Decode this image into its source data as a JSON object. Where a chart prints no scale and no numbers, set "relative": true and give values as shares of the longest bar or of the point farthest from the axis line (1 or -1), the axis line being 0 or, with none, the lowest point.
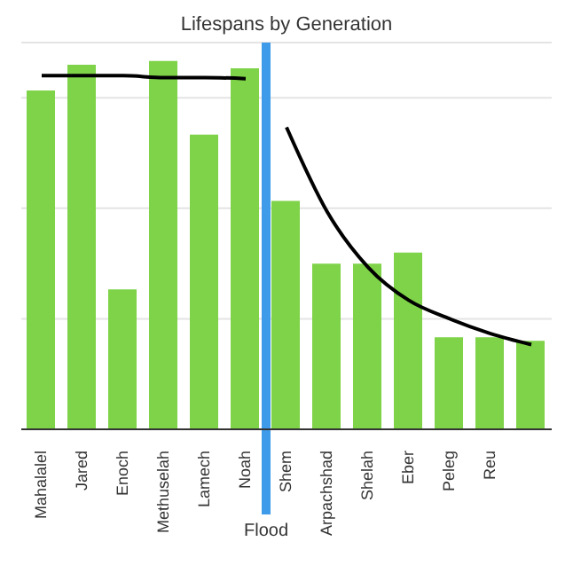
{
  "chart_data": {
    "type": "bar",
    "title": "Lifespans by Generation",
    "relative": true,
    "grid": "y",
    "legend": false,
    "categories": [
      "Mahalalel",
      "Jared",
      "Enoch",
      "Methuselah",
      "Lamech",
      "Noah",
      "Shem",
      "Arpachshad",
      "Shelah",
      "Eber",
      "Peleg",
      "Reu",
      null
    ],
    "series": [
      {
        "color": "#7ed348",
        "values": [
          0.92,
          0.99,
          0.38,
          1,
          0.8,
          0.98,
          0.62,
          0.45,
          0.45,
          0.48,
          0.25,
          0.25,
          0.24
        ]
      },
      {
        "type": "line",
        "color": "#000000",
        "values": [
          0.96,
          0.96,
          0.96,
          0.955,
          0.955,
          0.952,
          null,
          null,
          null,
          null,
          null,
          null,
          null
        ]
      },
      {
        "type": "line",
        "color": "#000000",
        "values": [
          null,
          null,
          null,
          null,
          null,
          null,
          0.82,
          0.59,
          0.44,
          0.35,
          0.3,
          0.26,
          0.23
        ]
      }
    ],
    "ref_lines": [
      {
        "axis": "x",
        "value": "Noah",
        "label": "Flood",
        "color": "#3d9be9"
      }
    ]
  }
}
